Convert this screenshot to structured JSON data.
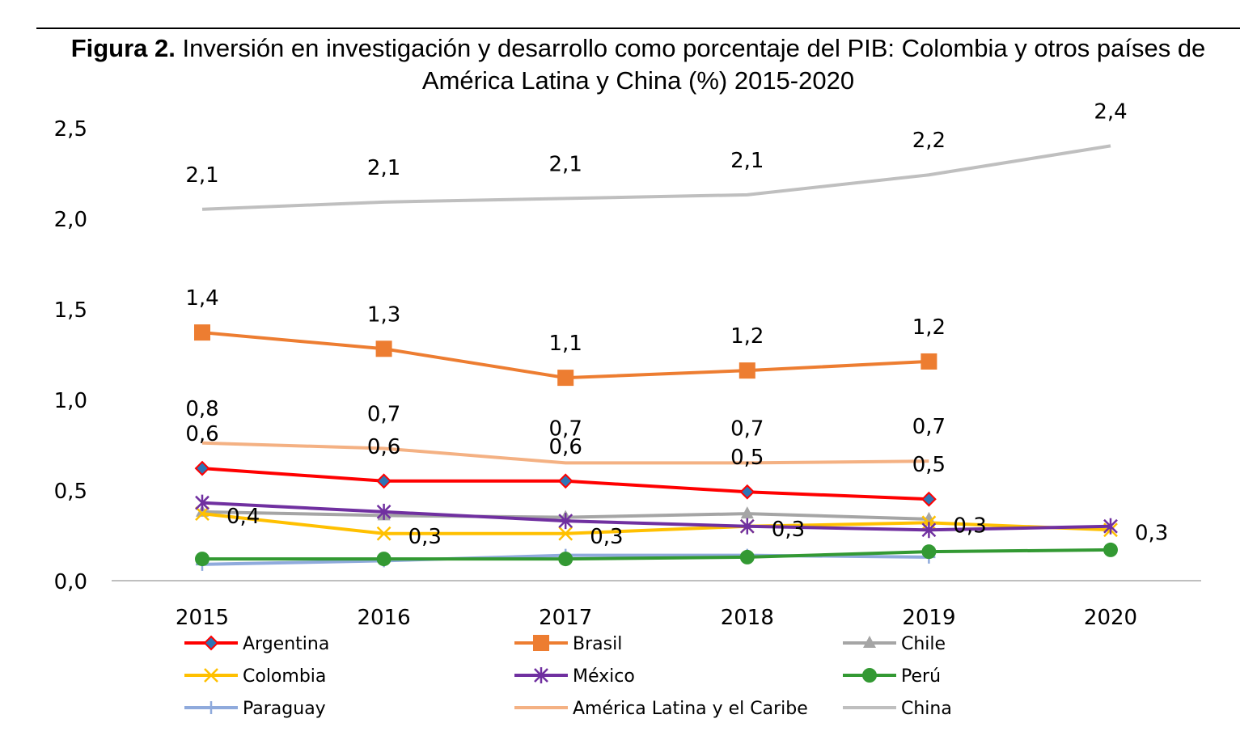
{
  "title_prefix": "Figura 2.",
  "title": "Inversión en investigación y desarrollo como porcentaje del PIB: Colombia y otros países de América Latina y China (%) 2015-2020",
  "chart_data": {
    "type": "line",
    "x": [
      "2015",
      "2016",
      "2017",
      "2018",
      "2019",
      "2020"
    ],
    "yticks": [
      "0,0",
      "0,5",
      "1,0",
      "1,5",
      "2,0",
      "2,5"
    ],
    "ylim": [
      0,
      2.5
    ],
    "grid": false,
    "legend_position": "bottom",
    "series": [
      {
        "name": "Argentina",
        "color": "#ff0000",
        "marker": "diamond",
        "values": [
          0.62,
          0.55,
          0.55,
          0.49,
          0.45,
          null
        ],
        "labels": [
          "0,6",
          "0,6",
          "0,6",
          "0,5",
          "0,5",
          null
        ],
        "label_pos": "above"
      },
      {
        "name": "Brasil",
        "color": "#ed7d31",
        "marker": "square",
        "values": [
          1.37,
          1.28,
          1.12,
          1.16,
          1.21,
          null
        ],
        "labels": [
          "1,4",
          "1,3",
          "1,1",
          "1,2",
          "1,2",
          null
        ],
        "label_pos": "above"
      },
      {
        "name": "Chile",
        "color": "#a5a5a5",
        "marker": "triangle",
        "values": [
          0.38,
          0.36,
          0.35,
          0.37,
          0.34,
          null
        ],
        "labels": [
          null,
          null,
          null,
          null,
          null,
          null
        ]
      },
      {
        "name": "Colombia",
        "color": "#ffc000",
        "marker": "x",
        "values": [
          0.37,
          0.26,
          0.26,
          0.3,
          0.32,
          0.28
        ],
        "labels": [
          "0,4",
          "0,3",
          "0,3",
          "0,3",
          "0,3",
          "0,3"
        ],
        "label_pos": "right"
      },
      {
        "name": "México",
        "color": "#7030a0",
        "marker": "star",
        "values": [
          0.43,
          0.38,
          0.33,
          0.3,
          0.28,
          0.3
        ],
        "labels": [
          null,
          null,
          null,
          null,
          null,
          null
        ]
      },
      {
        "name": "Perú",
        "color": "#339933",
        "marker": "circle",
        "values": [
          0.12,
          0.12,
          0.12,
          0.13,
          0.16,
          0.17
        ],
        "labels": [
          null,
          null,
          null,
          null,
          null,
          null
        ]
      },
      {
        "name": "Paraguay",
        "color": "#8faadc",
        "marker": "plus",
        "values": [
          0.09,
          0.11,
          0.14,
          0.14,
          0.13,
          null
        ],
        "labels": [
          null,
          null,
          null,
          null,
          null,
          null
        ]
      },
      {
        "name": "América Latina y el Caribe",
        "color": "#f4b183",
        "marker": "none",
        "values": [
          0.76,
          0.73,
          0.65,
          0.65,
          0.66,
          null
        ],
        "labels": [
          "0,8",
          "0,7",
          "0,7",
          "0,7",
          "0,7",
          null
        ],
        "label_pos": "above"
      },
      {
        "name": "China",
        "color": "#bfbfbf",
        "marker": "none",
        "values": [
          2.05,
          2.09,
          2.11,
          2.13,
          2.24,
          2.4
        ],
        "labels": [
          "2,1",
          "2,1",
          "2,1",
          "2,1",
          "2,2",
          "2,4"
        ],
        "label_pos": "above"
      }
    ]
  }
}
